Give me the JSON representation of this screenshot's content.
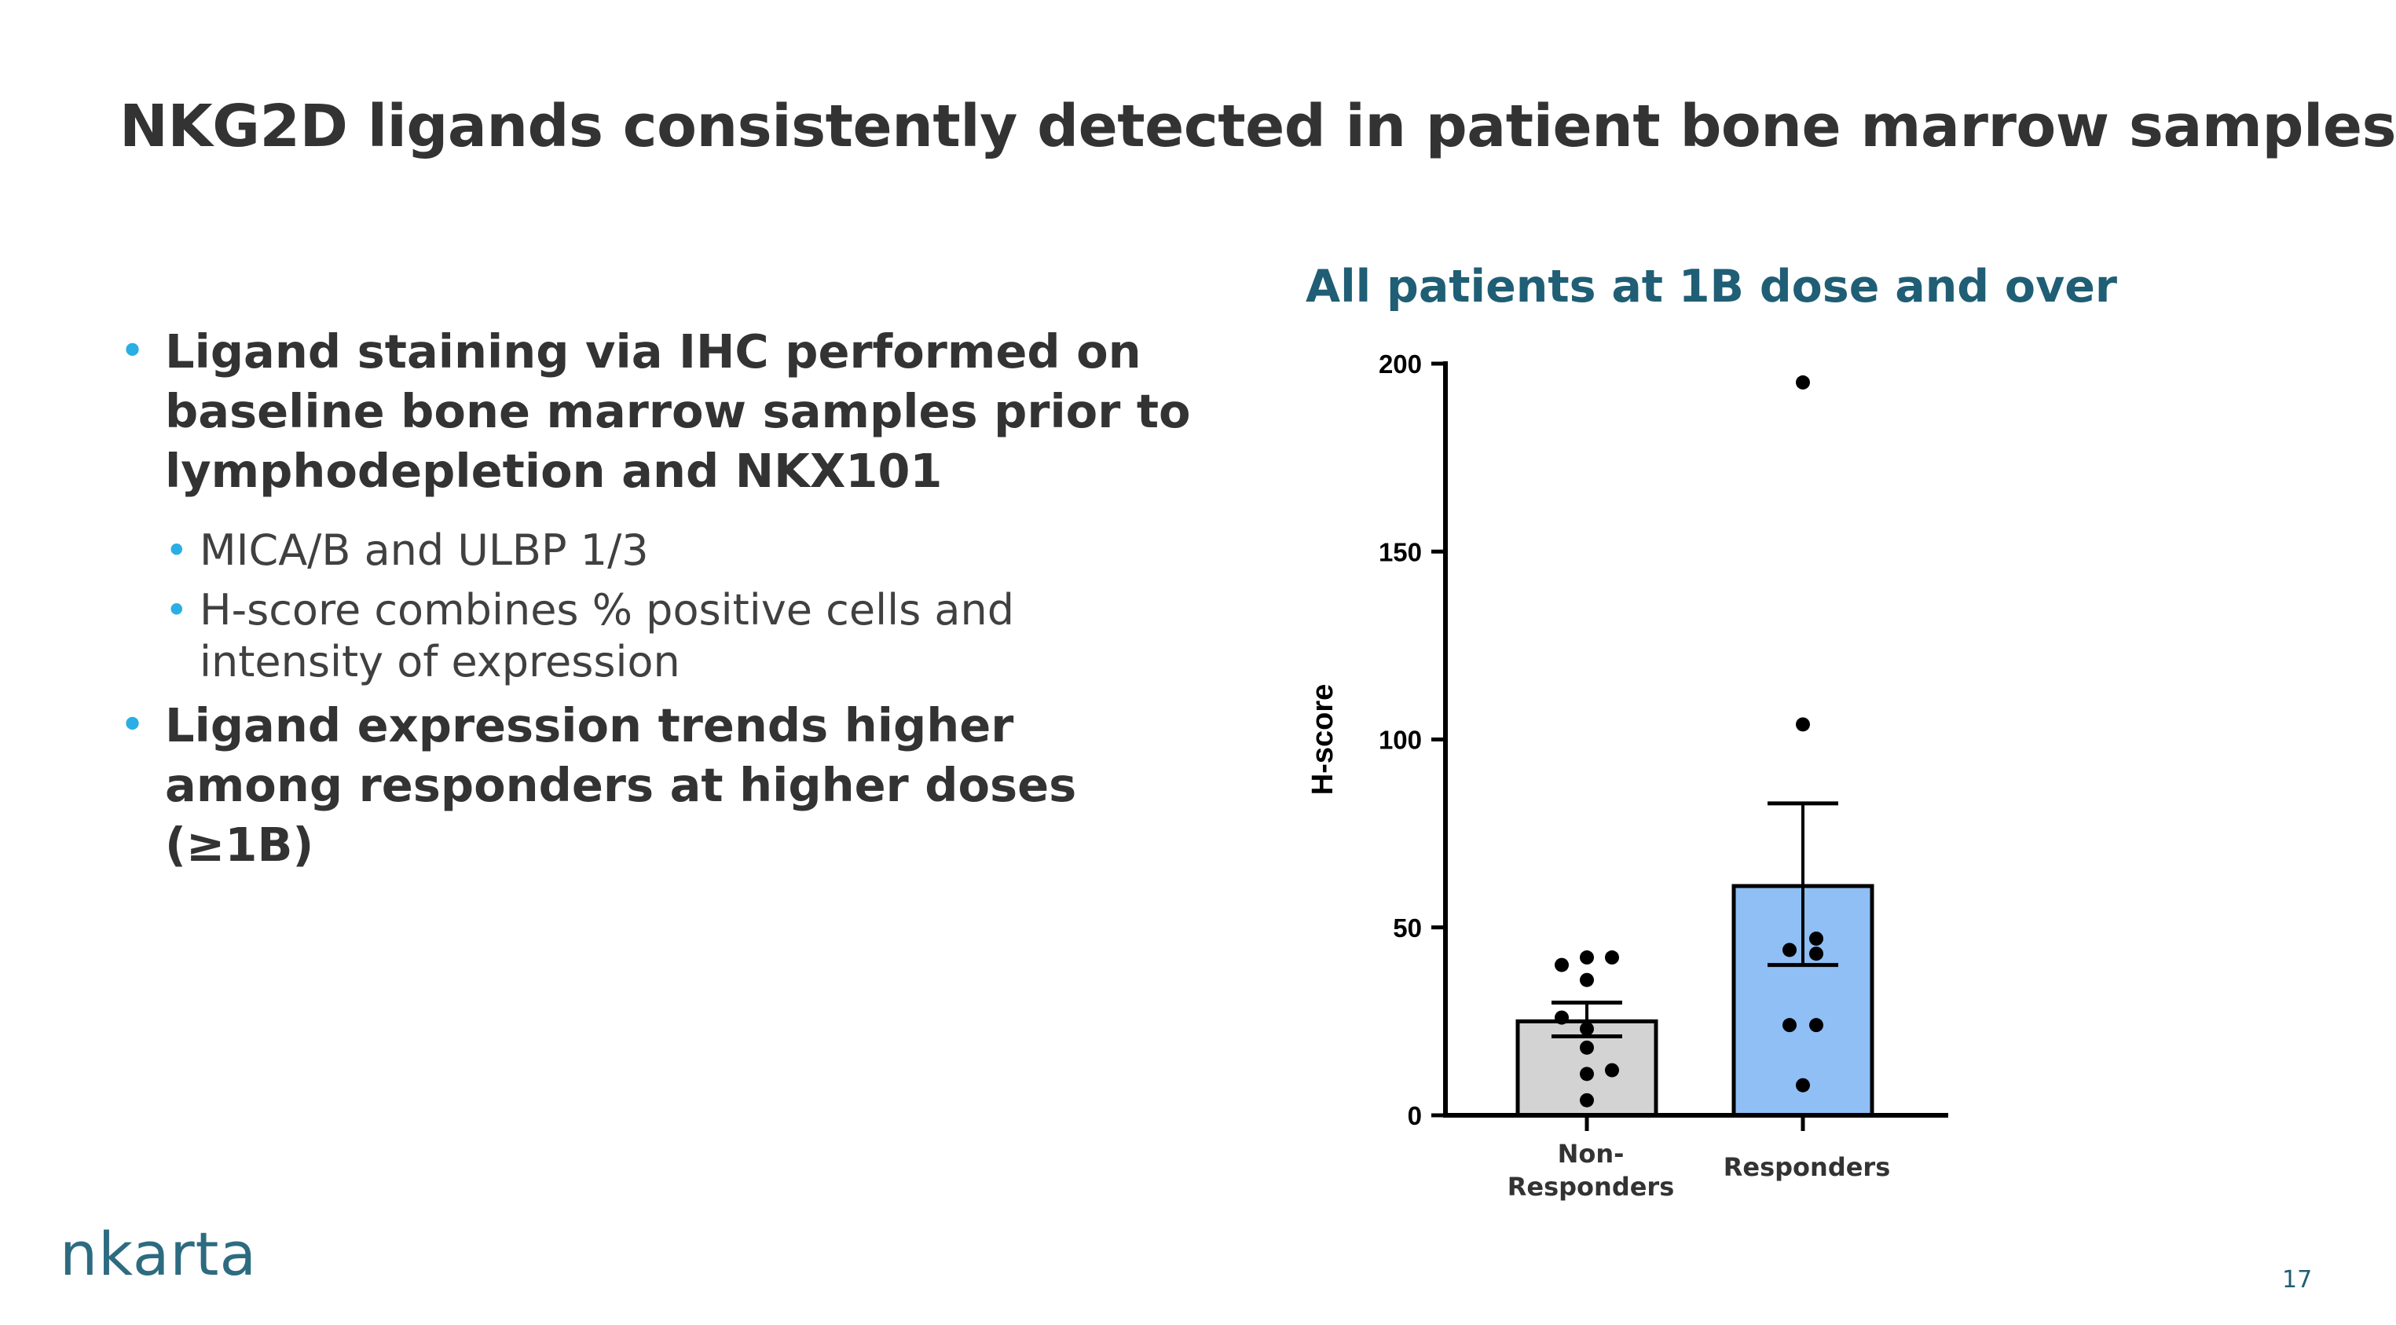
{
  "slide": {
    "title": "NKG2D ligands consistently detected in patient bone marrow samples",
    "page_number": "17",
    "logo_text": "nkarta"
  },
  "bullets": [
    {
      "level": 1,
      "text": "Ligand staining via IHC performed on baseline bone marrow samples prior to lymphodepletion and NKX101"
    },
    {
      "level": 2,
      "text": "MICA/B and ULBP 1/3"
    },
    {
      "level": 2,
      "text": "H-score combines % positive cells and intensity of expression"
    },
    {
      "level": 1,
      "text": "Ligand expression trends higher among responders at higher doses (≥1B)"
    }
  ],
  "colors": {
    "bullet_accent": "#2aaee5",
    "chart_title": "#1f5e75",
    "non_responders_bar": "#d3d3d3",
    "responders_bar": "#8fbff5"
  },
  "chart_data": {
    "type": "bar",
    "title": "All patients at 1B dose and over",
    "ylabel": "H-score",
    "xlabel": "",
    "ylim": [
      0,
      200
    ],
    "yticks": [
      0,
      50,
      100,
      150,
      200
    ],
    "categories": [
      "Non-Responders",
      "Responders"
    ],
    "category_label_lines": [
      [
        "Non-",
        "Responders"
      ],
      [
        "Responders"
      ]
    ],
    "means": [
      25,
      61
    ],
    "error_bars": [
      {
        "lower": 21,
        "upper": 30
      },
      {
        "lower": 40,
        "upper": 83
      }
    ],
    "points": [
      [
        40,
        42,
        42,
        36,
        26,
        23,
        18,
        12,
        11,
        4
      ],
      [
        195,
        104,
        47,
        44,
        43,
        24,
        24,
        8
      ]
    ],
    "grid": false,
    "legend": "none"
  }
}
